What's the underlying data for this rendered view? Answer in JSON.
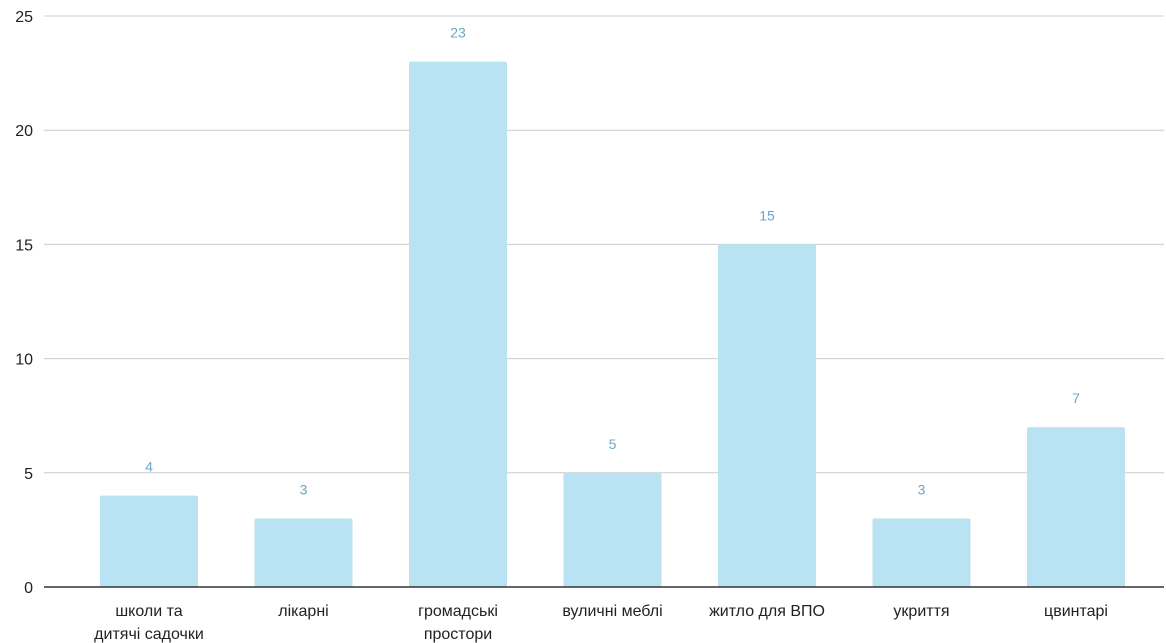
{
  "chart_data": {
    "type": "bar",
    "title": "",
    "xlabel": "",
    "ylabel": "",
    "categories": [
      [
        "школи та",
        "дитячі садочки"
      ],
      [
        "лікарні"
      ],
      [
        "громадські",
        "простори"
      ],
      [
        "вуличні меблі"
      ],
      [
        "житло для ВПО"
      ],
      [
        "укриття"
      ],
      [
        "цвинтарі"
      ]
    ],
    "values": [
      4,
      3,
      23,
      5,
      15,
      3,
      7
    ],
    "data_labels": [
      "4",
      "3",
      "23",
      "5",
      "15",
      "3",
      "7"
    ],
    "ylim": [
      0,
      25
    ],
    "yticks": [
      0,
      5,
      10,
      15,
      20,
      25
    ],
    "ytick_labels": [
      "0",
      "5",
      "10",
      "15",
      "20",
      "25"
    ],
    "grid": true,
    "legend": "none",
    "colors": {
      "bar": "#b9e2f2",
      "data_label": "#6aa7c9",
      "grid": "#cccccc",
      "axis": "#333333"
    }
  }
}
